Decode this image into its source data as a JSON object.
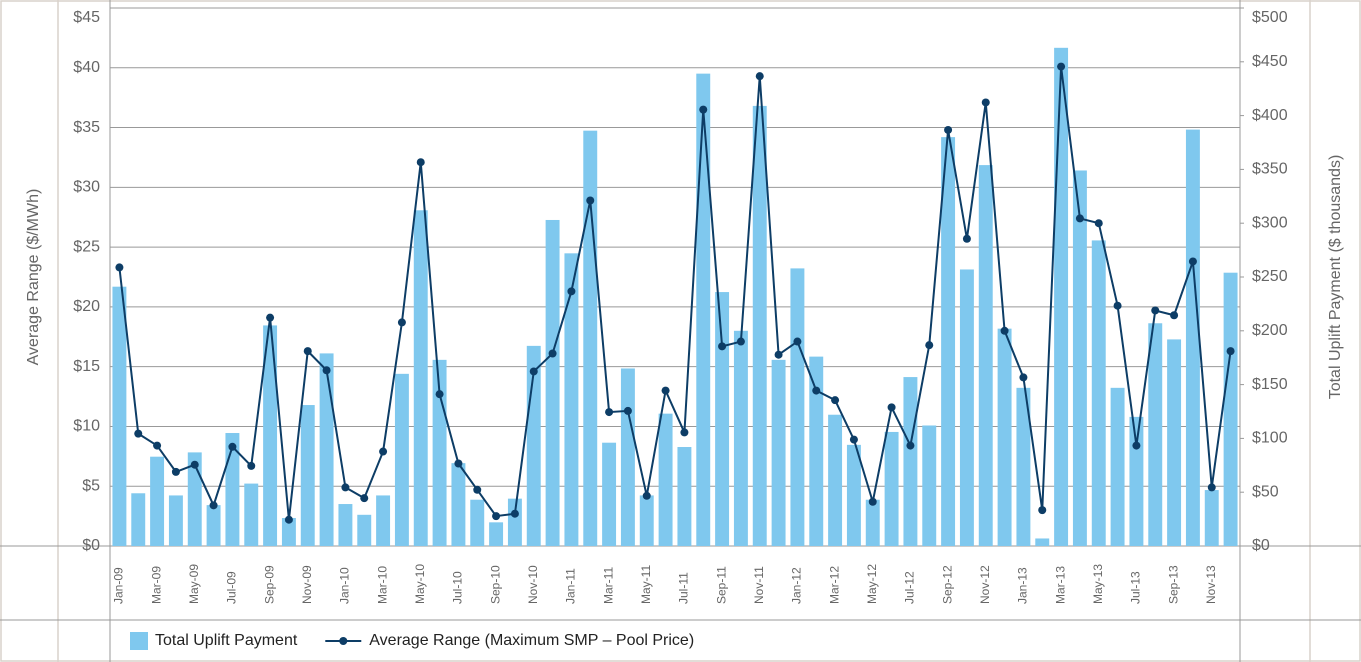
{
  "chart_data": {
    "type": "combo",
    "y_label": "Average Range ($/MWh)",
    "y2_label": "Total Uplift Payment ($ thousands)",
    "categories": [
      "Jan-09",
      null,
      "Mar-09",
      null,
      "May-09",
      null,
      "Jul-09",
      null,
      "Sep-09",
      null,
      "Nov-09",
      null,
      "Jan-10",
      null,
      "Mar-10",
      null,
      "May-10",
      null,
      "Jul-10",
      null,
      "Sep-10",
      null,
      "Nov-10",
      null,
      "Jan-11",
      null,
      "Mar-11",
      null,
      "May-11",
      null,
      "Jul-11",
      null,
      "Sep-11",
      null,
      "Nov-11",
      null,
      "Jan-12",
      null,
      "Mar-12",
      null,
      "May-12",
      null,
      "Jul-12",
      null,
      "Sep-12",
      null,
      "Nov-12",
      null,
      "Jan-13",
      null,
      "Mar-13",
      null,
      "May-13",
      null,
      "Jul-13",
      null,
      "Sep-13",
      null,
      "Nov-13",
      null
    ],
    "series": [
      {
        "name": "Total Uplift Payment",
        "type": "bar",
        "axis": "y2",
        "color": "#7fc8ee",
        "values": [
          241,
          49,
          83,
          47,
          87,
          38,
          105,
          58,
          205,
          26,
          131,
          179,
          39,
          29,
          47,
          160,
          312,
          173,
          77,
          43,
          22,
          44,
          186,
          303,
          272,
          386,
          96,
          165,
          47,
          123,
          92,
          439,
          236,
          200,
          409,
          173,
          258,
          176,
          122,
          94,
          43,
          106,
          157,
          112,
          380,
          257,
          354,
          202,
          147,
          7,
          463,
          349,
          284,
          147,
          120,
          207,
          192,
          387,
          52,
          254
        ]
      },
      {
        "name": "Average Range (Maximum SMP – Pool Price)",
        "type": "line",
        "color": "#0d3d66",
        "values": [
          23.3,
          9.4,
          8.4,
          6.2,
          6.8,
          3.4,
          8.3,
          6.7,
          19.1,
          2.2,
          16.3,
          14.7,
          4.9,
          4.0,
          7.9,
          18.7,
          32.1,
          12.7,
          6.9,
          4.7,
          2.5,
          2.7,
          14.6,
          16.1,
          21.3,
          28.9,
          11.2,
          11.3,
          4.2,
          13.0,
          9.5,
          36.5,
          16.7,
          17.1,
          39.3,
          16.0,
          17.1,
          13.0,
          12.2,
          8.9,
          3.7,
          11.6,
          8.4,
          16.8,
          34.8,
          25.7,
          37.1,
          18.0,
          14.1,
          3.0,
          40.1,
          27.4,
          27.0,
          20.1,
          8.4,
          19.7,
          19.3,
          23.8,
          4.9,
          16.3
        ]
      }
    ],
    "ylim": [
      0,
      45
    ],
    "yticks": [
      {
        "value": 0,
        "label": "$0"
      },
      {
        "value": 5,
        "label": "$5"
      },
      {
        "value": 10,
        "label": "$10"
      },
      {
        "value": 15,
        "label": "$15"
      },
      {
        "value": 20,
        "label": "$20"
      },
      {
        "value": 25,
        "label": "$25"
      },
      {
        "value": 30,
        "label": "$30"
      },
      {
        "value": 35,
        "label": "$35"
      },
      {
        "value": 40,
        "label": "$40"
      },
      {
        "value": 45,
        "label": "$45"
      }
    ],
    "y2lim": [
      0,
      500
    ],
    "y2ticks": [
      {
        "value": 0,
        "label": "$0"
      },
      {
        "value": 50,
        "label": "$50"
      },
      {
        "value": 100,
        "label": "$100"
      },
      {
        "value": 150,
        "label": "$150"
      },
      {
        "value": 200,
        "label": "$200"
      },
      {
        "value": 250,
        "label": "$250"
      },
      {
        "value": 300,
        "label": "$300"
      },
      {
        "value": 350,
        "label": "$350"
      },
      {
        "value": 400,
        "label": "$400"
      },
      {
        "value": 450,
        "label": "$450"
      },
      {
        "value": 500,
        "label": "$500"
      }
    ],
    "grid": true
  }
}
